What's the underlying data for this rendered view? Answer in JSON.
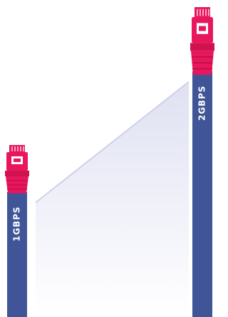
{
  "cables": [
    {
      "label": "1GBPS"
    },
    {
      "label": "2GBPS"
    }
  ]
}
